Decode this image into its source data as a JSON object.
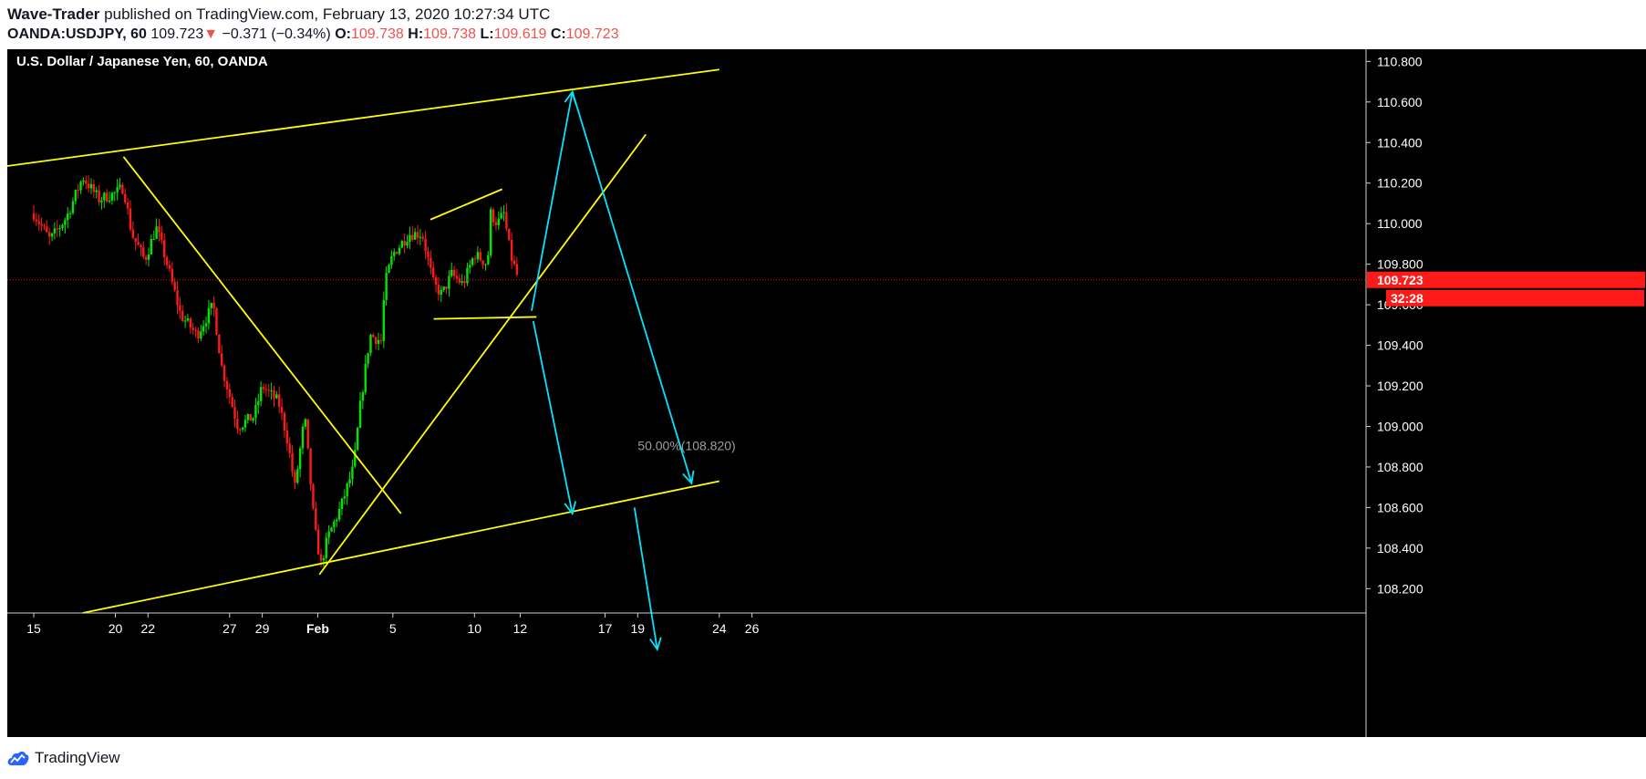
{
  "header": {
    "author": "Wave-Trader",
    "published_text": "published on TradingView.com, February 13, 2020 10:27:34 UTC",
    "symbol": "OANDA:USDJPY, 60",
    "last_price": "109.723",
    "change_arrow": "▼",
    "change": "−0.371 (−0.34%)",
    "o_label": "O:",
    "o_value": "109.738",
    "h_label": "H:",
    "h_value": "109.738",
    "l_label": "L:",
    "l_value": "109.619",
    "c_label": "C:",
    "c_value": "109.723"
  },
  "chart_title": "U.S. Dollar / Japanese Yen, 60, OANDA",
  "chart_data": {
    "type": "candlestick",
    "title": "U.S. Dollar / Japanese Yen, 60, OANDA",
    "x_ticks": [
      "15",
      "20",
      "22",
      "27",
      "29",
      "Feb",
      "5",
      "10",
      "12",
      "17",
      "19",
      "24",
      "26"
    ],
    "y_ticks": [
      "110.800",
      "110.600",
      "110.400",
      "110.200",
      "110.000",
      "109.800",
      "109.600",
      "109.400",
      "109.200",
      "109.000",
      "108.800",
      "108.600",
      "108.400",
      "108.200"
    ],
    "ylim": [
      108.08,
      110.86
    ],
    "current_price": 109.723,
    "countdown": "32:28",
    "fib_label": "50.00%(108.820)",
    "path_points": [
      {
        "d": 15,
        "p": 110.05
      },
      {
        "d": 16,
        "p": 109.92
      },
      {
        "d": 17,
        "p": 110.03
      },
      {
        "d": 18,
        "p": 110.23
      },
      {
        "d": 19,
        "p": 110.12
      },
      {
        "d": 20,
        "p": 110.15
      },
      {
        "d": 20.5,
        "p": 110.18
      },
      {
        "d": 21,
        "p": 109.95
      },
      {
        "d": 21.8,
        "p": 109.82
      },
      {
        "d": 22.5,
        "p": 109.98
      },
      {
        "d": 23,
        "p": 109.85
      },
      {
        "d": 24,
        "p": 109.55
      },
      {
        "d": 25,
        "p": 109.45
      },
      {
        "d": 26,
        "p": 109.6
      },
      {
        "d": 26.5,
        "p": 109.3
      },
      {
        "d": 27.5,
        "p": 109.0
      },
      {
        "d": 28.5,
        "p": 109.05
      },
      {
        "d": 29,
        "p": 109.2
      },
      {
        "d": 30,
        "p": 109.12
      },
      {
        "d": 30.5,
        "p": 108.95
      },
      {
        "d": 31,
        "p": 108.7
      },
      {
        "d": 31.6,
        "p": 109.05
      },
      {
        "d": 32.2,
        "p": 108.5
      },
      {
        "d": 32.6,
        "p": 108.32
      },
      {
        "d": 33,
        "p": 108.45
      },
      {
        "d": 33.8,
        "p": 108.6
      },
      {
        "d": 34.6,
        "p": 108.8
      },
      {
        "d": 35,
        "p": 109.1
      },
      {
        "d": 35.6,
        "p": 109.45
      },
      {
        "d": 36.3,
        "p": 109.42
      },
      {
        "d": 36.5,
        "p": 109.7
      },
      {
        "d": 37,
        "p": 109.85
      },
      {
        "d": 38,
        "p": 109.95
      },
      {
        "d": 38.8,
        "p": 109.95
      },
      {
        "d": 39.5,
        "p": 109.7
      },
      {
        "d": 40,
        "p": 109.65
      },
      {
        "d": 40.6,
        "p": 109.75
      },
      {
        "d": 41.3,
        "p": 109.7
      },
      {
        "d": 42,
        "p": 109.85
      },
      {
        "d": 42.8,
        "p": 109.8
      },
      {
        "d": 43,
        "p": 110.05
      },
      {
        "d": 43.4,
        "p": 110.0
      },
      {
        "d": 43.8,
        "p": 110.05
      },
      {
        "d": 44.2,
        "p": 109.85
      },
      {
        "d": 44.7,
        "p": 109.72
      }
    ],
    "trend_lines": [
      {
        "name": "upper-channel",
        "color": "#ffff00",
        "from": {
          "d": 8.4,
          "p": 110.23
        },
        "to": {
          "d": 57,
          "p": 110.76
        }
      },
      {
        "name": "lower-channel",
        "color": "#ffff00",
        "from": {
          "d": 18,
          "p": 108.08
        },
        "to": {
          "d": 57,
          "p": 108.73
        }
      },
      {
        "name": "downtrend",
        "color": "#ffff00",
        "from": {
          "d": 20.5,
          "p": 110.33
        },
        "to": {
          "d": 37.5,
          "p": 108.57
        }
      },
      {
        "name": "uptrend-support",
        "color": "#ffff00",
        "from": {
          "d": 32.5,
          "p": 108.27
        },
        "to": {
          "d": 52.5,
          "p": 110.44
        }
      },
      {
        "name": "wedge-top",
        "color": "#ffff00",
        "from": {
          "d": 39.3,
          "p": 110.02
        },
        "to": {
          "d": 43.7,
          "p": 110.17
        }
      },
      {
        "name": "wedge-bottom",
        "color": "#ffff00",
        "from": {
          "d": 39.5,
          "p": 109.53
        },
        "to": {
          "d": 45.8,
          "p": 109.54
        }
      }
    ],
    "projection_arrows": [
      {
        "name": "projection-up",
        "color": "#00e5ff",
        "from": {
          "d": 45.5,
          "p": 109.57
        },
        "to": {
          "d": 48,
          "p": 110.65
        }
      },
      {
        "name": "projection-down-long",
        "color": "#00e5ff",
        "from": {
          "d": 48,
          "p": 110.65
        },
        "to": {
          "d": 55.3,
          "p": 108.72
        }
      },
      {
        "name": "projection-down-short",
        "color": "#00e5ff",
        "from": {
          "d": 45.6,
          "p": 109.52
        },
        "to": {
          "d": 48,
          "p": 108.57
        }
      },
      {
        "name": "projection-continuation",
        "color": "#00e5ff",
        "from": {
          "d": 51.8,
          "p": 108.6
        },
        "to": {
          "d": 53.2,
          "p": 107.9
        }
      }
    ]
  },
  "footer": {
    "brand": "TradingView"
  }
}
